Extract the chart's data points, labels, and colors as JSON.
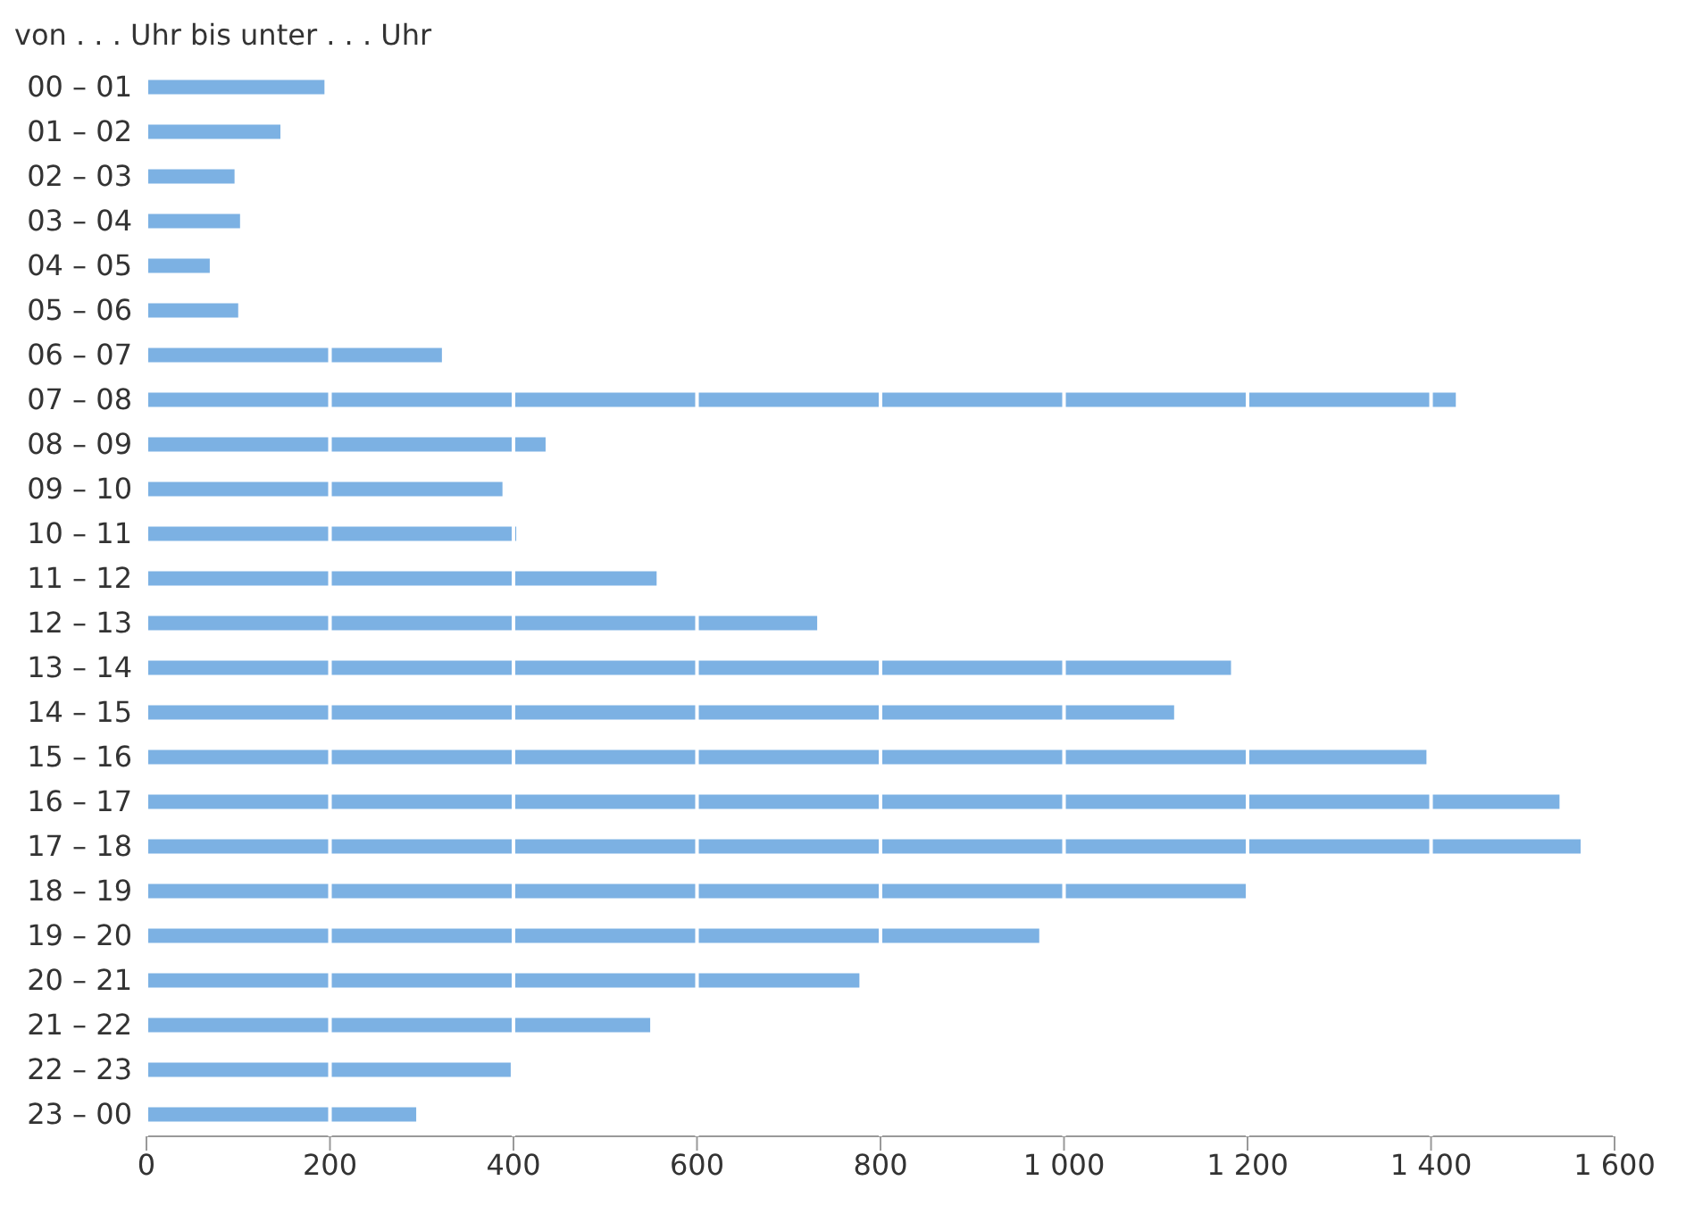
{
  "chart_data": {
    "type": "bar",
    "orientation": "horizontal",
    "ylabel": "von . . . Uhr bis unter . . .  Uhr",
    "categories": [
      "00 – 01",
      "01 – 02",
      "02 – 03",
      "03 – 04",
      "04 – 05",
      "05 – 06",
      "06 – 07",
      "07 – 08",
      "08 – 09",
      "09 – 10",
      "10 – 11",
      "11 – 12",
      "12 – 13",
      "13 – 14",
      "14 – 15",
      "15 – 16",
      "16 – 17",
      "17 – 18",
      "18 – 19",
      "19 – 20",
      "20 – 21",
      "21 – 22",
      "22 – 23",
      "23 – 00"
    ],
    "values": [
      194,
      146,
      96,
      102,
      69,
      100,
      322,
      1427,
      435,
      388,
      403,
      556,
      731,
      1182,
      1120,
      1395,
      1540,
      1563,
      1201,
      973,
      777,
      549,
      397,
      294
    ],
    "color": "#7cb1e3",
    "xlim": [
      0,
      1600
    ],
    "xticks": [
      0,
      200,
      400,
      600,
      800,
      {
        "value": 1000,
        "label": "1 000"
      },
      {
        "value": 1200,
        "label": "1 200"
      },
      {
        "value": 1400,
        "label": "1 400"
      },
      {
        "value": 1600,
        "label": "1 600"
      }
    ],
    "grid": "x"
  }
}
